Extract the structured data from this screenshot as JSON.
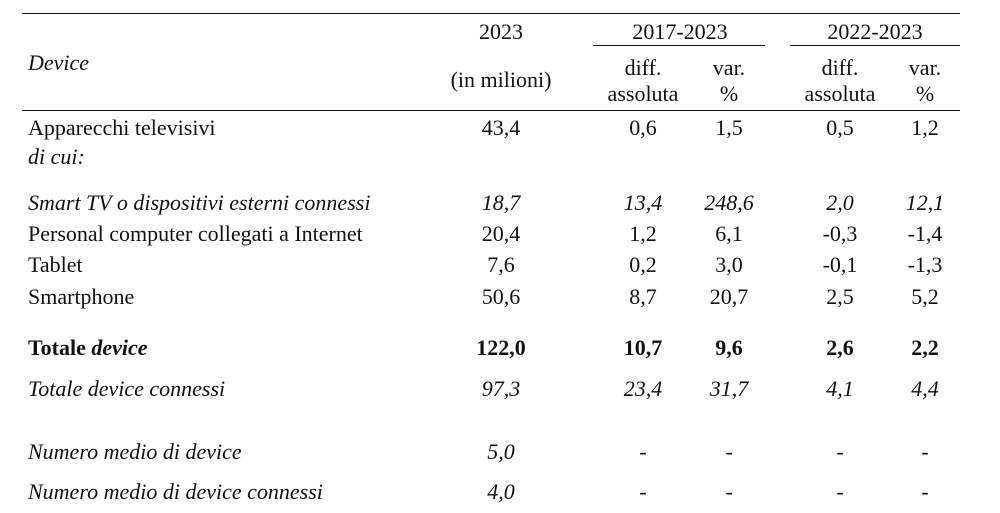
{
  "table": {
    "header": {
      "row_label": "Device",
      "year": "2023",
      "year_unit": "(in milioni)",
      "groups": [
        {
          "title": "2017-2023",
          "columns": [
            [
              "diff.",
              "assoluta"
            ],
            [
              "var.",
              "%"
            ]
          ]
        },
        {
          "title": "2022-2023",
          "columns": [
            [
              "diff.",
              "assoluta"
            ],
            [
              "var.",
              "%"
            ]
          ]
        }
      ]
    },
    "rows": [
      {
        "label": [
          "Apparecchi televisivi"
        ],
        "style": "normal",
        "values": [
          "43,4",
          "0,6",
          "1,5",
          "0,5",
          "1,2"
        ]
      },
      {
        "label": [
          "di cui:"
        ],
        "style": "italic",
        "values": []
      },
      {
        "label": [
          "Smart TV o dispositivi esterni connessi"
        ],
        "style": "italic",
        "values": [
          "18,7",
          "13,4",
          "248,6",
          "2,0",
          "12,1"
        ]
      },
      {
        "label": [
          "Personal computer collegati a Internet"
        ],
        "style": "normal",
        "values": [
          "20,4",
          "1,2",
          "6,1",
          "-0,3",
          "-1,4"
        ]
      },
      {
        "label": [
          "Tablet"
        ],
        "style": "normal",
        "values": [
          "7,6",
          "0,2",
          "3,0",
          "-0,1",
          "-1,3"
        ]
      },
      {
        "label": [
          "Smartphone"
        ],
        "style": "normal",
        "values": [
          "50,6",
          "8,7",
          "20,7",
          "2,5",
          "5,2"
        ]
      },
      {
        "label": [
          "Totale",
          "device"
        ],
        "style": "bold",
        "values": [
          "122,0",
          "10,7",
          "9,6",
          "2,6",
          "2,2"
        ]
      },
      {
        "label": [
          "Totale device connessi"
        ],
        "style": "italic",
        "values": [
          "97,3",
          "23,4",
          "31,7",
          "4,1",
          "4,4"
        ]
      },
      {
        "label": [
          "Numero medio di device"
        ],
        "style": "italic",
        "values": [
          "5,0",
          "-",
          "-",
          "-",
          "-"
        ]
      },
      {
        "label": [
          "Numero medio di device connessi"
        ],
        "style": "italic",
        "values": [
          "4,0",
          "-",
          "-",
          "-",
          "-"
        ]
      }
    ]
  }
}
